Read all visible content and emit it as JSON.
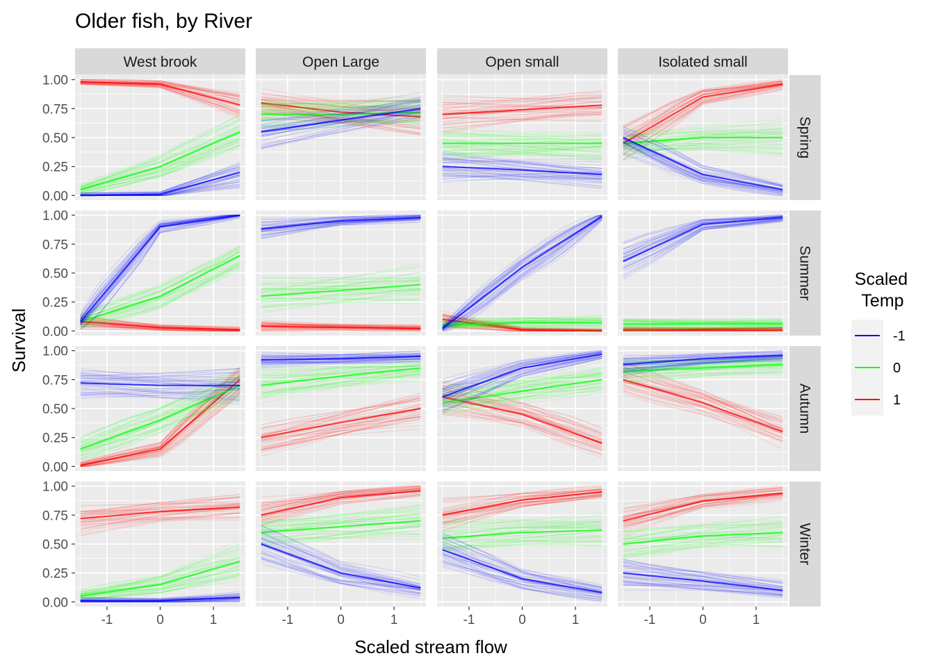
{
  "chart_data": {
    "type": "line",
    "title": "Older fish, by River",
    "xlabel": "Scaled stream flow",
    "ylabel": "Survival",
    "xlim": [
      -1.6,
      1.6
    ],
    "ylim": [
      -0.04,
      1.04
    ],
    "x_ticks": [
      -1,
      0,
      1
    ],
    "x_tick_labels": [
      "-1",
      "0",
      "1"
    ],
    "y_ticks": [
      0,
      0.25,
      0.5,
      0.75,
      1
    ],
    "y_tick_labels": [
      "0.00",
      "0.25",
      "0.50",
      "0.75",
      "1.00"
    ],
    "grid": true,
    "legend": {
      "title_lines": [
        "Scaled",
        "Temp"
      ],
      "position": "right",
      "entries": [
        {
          "label": "-1",
          "color": "#0000ff"
        },
        {
          "label": "0",
          "color": "#00ff00"
        },
        {
          "label": "1",
          "color": "#ff0000"
        }
      ]
    },
    "columns": [
      "West brook",
      "Open Large",
      "Open small",
      "Isolated small"
    ],
    "rows": [
      "Spring",
      "Summer",
      "Autumn",
      "Winter"
    ],
    "panels": [
      {
        "row": "Spring",
        "column": "West brook",
        "series": [
          {
            "temp": "-1",
            "x": [
              -1.5,
              0,
              1.5
            ],
            "y": [
              0.0,
              0.01,
              0.2
            ]
          },
          {
            "temp": "0",
            "x": [
              -1.5,
              0,
              1.5
            ],
            "y": [
              0.05,
              0.25,
              0.55
            ]
          },
          {
            "temp": "1",
            "x": [
              -1.5,
              0,
              1.5
            ],
            "y": [
              0.98,
              0.96,
              0.78
            ]
          }
        ]
      },
      {
        "row": "Spring",
        "column": "Open Large",
        "series": [
          {
            "temp": "-1",
            "x": [
              -1.5,
              0,
              1.5
            ],
            "y": [
              0.55,
              0.65,
              0.75
            ]
          },
          {
            "temp": "0",
            "x": [
              -1.5,
              0,
              1.5
            ],
            "y": [
              0.7,
              0.7,
              0.72
            ]
          },
          {
            "temp": "1",
            "x": [
              -1.5,
              0,
              1.5
            ],
            "y": [
              0.8,
              0.72,
              0.68
            ]
          }
        ]
      },
      {
        "row": "Spring",
        "column": "Open small",
        "series": [
          {
            "temp": "-1",
            "x": [
              -1.5,
              0,
              1.5
            ],
            "y": [
              0.25,
              0.22,
              0.18
            ]
          },
          {
            "temp": "0",
            "x": [
              -1.5,
              0,
              1.5
            ],
            "y": [
              0.45,
              0.45,
              0.45
            ]
          },
          {
            "temp": "1",
            "x": [
              -1.5,
              0,
              1.5
            ],
            "y": [
              0.7,
              0.74,
              0.78
            ]
          }
        ]
      },
      {
        "row": "Spring",
        "column": "Isolated small",
        "series": [
          {
            "temp": "-1",
            "x": [
              -1.5,
              0,
              1.5
            ],
            "y": [
              0.5,
              0.18,
              0.05
            ]
          },
          {
            "temp": "0",
            "x": [
              -1.5,
              0,
              1.5
            ],
            "y": [
              0.45,
              0.5,
              0.5
            ]
          },
          {
            "temp": "1",
            "x": [
              -1.5,
              0,
              1.5
            ],
            "y": [
              0.45,
              0.85,
              0.96
            ]
          }
        ]
      },
      {
        "row": "Summer",
        "column": "West brook",
        "series": [
          {
            "temp": "-1",
            "x": [
              -1.5,
              0,
              1.5
            ],
            "y": [
              0.08,
              0.9,
              1.0
            ]
          },
          {
            "temp": "0",
            "x": [
              -1.5,
              0,
              1.5
            ],
            "y": [
              0.08,
              0.3,
              0.65
            ]
          },
          {
            "temp": "1",
            "x": [
              -1.5,
              0,
              1.5
            ],
            "y": [
              0.08,
              0.03,
              0.01
            ]
          }
        ]
      },
      {
        "row": "Summer",
        "column": "Open Large",
        "series": [
          {
            "temp": "-1",
            "x": [
              -1.5,
              0,
              1.5
            ],
            "y": [
              0.88,
              0.95,
              0.98
            ]
          },
          {
            "temp": "0",
            "x": [
              -1.5,
              0,
              1.5
            ],
            "y": [
              0.3,
              0.35,
              0.4
            ]
          },
          {
            "temp": "1",
            "x": [
              -1.5,
              0,
              1.5
            ],
            "y": [
              0.04,
              0.03,
              0.02
            ]
          }
        ]
      },
      {
        "row": "Summer",
        "column": "Open small",
        "series": [
          {
            "temp": "-1",
            "x": [
              -1.5,
              0,
              1.5
            ],
            "y": [
              0.02,
              0.55,
              0.99
            ]
          },
          {
            "temp": "0",
            "x": [
              -1.5,
              0,
              1.5
            ],
            "y": [
              0.05,
              0.07,
              0.07
            ]
          },
          {
            "temp": "1",
            "x": [
              -1.5,
              0,
              1.5
            ],
            "y": [
              0.1,
              0.01,
              0.0
            ]
          }
        ]
      },
      {
        "row": "Summer",
        "column": "Isolated small",
        "series": [
          {
            "temp": "-1",
            "x": [
              -1.5,
              0,
              1.5
            ],
            "y": [
              0.6,
              0.92,
              0.98
            ]
          },
          {
            "temp": "0",
            "x": [
              -1.5,
              0,
              1.5
            ],
            "y": [
              0.06,
              0.06,
              0.06
            ]
          },
          {
            "temp": "1",
            "x": [
              -1.5,
              0,
              1.5
            ],
            "y": [
              0.01,
              0.01,
              0.01
            ]
          }
        ]
      },
      {
        "row": "Autumn",
        "column": "West brook",
        "series": [
          {
            "temp": "-1",
            "x": [
              -1.5,
              0,
              1.5
            ],
            "y": [
              0.72,
              0.7,
              0.7
            ]
          },
          {
            "temp": "0",
            "x": [
              -1.5,
              0,
              1.5
            ],
            "y": [
              0.15,
              0.4,
              0.7
            ]
          },
          {
            "temp": "1",
            "x": [
              -1.5,
              0,
              1.5
            ],
            "y": [
              0.01,
              0.15,
              0.75
            ]
          }
        ]
      },
      {
        "row": "Autumn",
        "column": "Open Large",
        "series": [
          {
            "temp": "-1",
            "x": [
              -1.5,
              0,
              1.5
            ],
            "y": [
              0.92,
              0.93,
              0.95
            ]
          },
          {
            "temp": "0",
            "x": [
              -1.5,
              0,
              1.5
            ],
            "y": [
              0.7,
              0.78,
              0.85
            ]
          },
          {
            "temp": "1",
            "x": [
              -1.5,
              0,
              1.5
            ],
            "y": [
              0.25,
              0.38,
              0.5
            ]
          }
        ]
      },
      {
        "row": "Autumn",
        "column": "Open small",
        "series": [
          {
            "temp": "-1",
            "x": [
              -1.5,
              0,
              1.5
            ],
            "y": [
              0.6,
              0.85,
              0.97
            ]
          },
          {
            "temp": "0",
            "x": [
              -1.5,
              0,
              1.5
            ],
            "y": [
              0.55,
              0.65,
              0.75
            ]
          },
          {
            "temp": "1",
            "x": [
              -1.5,
              0,
              1.5
            ],
            "y": [
              0.6,
              0.45,
              0.2
            ]
          }
        ]
      },
      {
        "row": "Autumn",
        "column": "Isolated small",
        "series": [
          {
            "temp": "-1",
            "x": [
              -1.5,
              0,
              1.5
            ],
            "y": [
              0.88,
              0.93,
              0.96
            ]
          },
          {
            "temp": "0",
            "x": [
              -1.5,
              0,
              1.5
            ],
            "y": [
              0.82,
              0.85,
              0.88
            ]
          },
          {
            "temp": "1",
            "x": [
              -1.5,
              0,
              1.5
            ],
            "y": [
              0.75,
              0.55,
              0.3
            ]
          }
        ]
      },
      {
        "row": "Winter",
        "column": "West brook",
        "series": [
          {
            "temp": "-1",
            "x": [
              -1.5,
              0,
              1.5
            ],
            "y": [
              0.01,
              0.01,
              0.04
            ]
          },
          {
            "temp": "0",
            "x": [
              -1.5,
              0,
              1.5
            ],
            "y": [
              0.05,
              0.15,
              0.35
            ]
          },
          {
            "temp": "1",
            "x": [
              -1.5,
              0,
              1.5
            ],
            "y": [
              0.72,
              0.78,
              0.82
            ]
          }
        ]
      },
      {
        "row": "Winter",
        "column": "Open Large",
        "series": [
          {
            "temp": "-1",
            "x": [
              -1.5,
              0,
              1.5
            ],
            "y": [
              0.5,
              0.25,
              0.12
            ]
          },
          {
            "temp": "0",
            "x": [
              -1.5,
              0,
              1.5
            ],
            "y": [
              0.6,
              0.65,
              0.7
            ]
          },
          {
            "temp": "1",
            "x": [
              -1.5,
              0,
              1.5
            ],
            "y": [
              0.75,
              0.9,
              0.96
            ]
          }
        ]
      },
      {
        "row": "Winter",
        "column": "Open small",
        "series": [
          {
            "temp": "-1",
            "x": [
              -1.5,
              0,
              1.5
            ],
            "y": [
              0.45,
              0.2,
              0.08
            ]
          },
          {
            "temp": "0",
            "x": [
              -1.5,
              0,
              1.5
            ],
            "y": [
              0.55,
              0.6,
              0.62
            ]
          },
          {
            "temp": "1",
            "x": [
              -1.5,
              0,
              1.5
            ],
            "y": [
              0.75,
              0.88,
              0.95
            ]
          }
        ]
      },
      {
        "row": "Winter",
        "column": "Isolated small",
        "series": [
          {
            "temp": "-1",
            "x": [
              -1.5,
              0,
              1.5
            ],
            "y": [
              0.25,
              0.18,
              0.1
            ]
          },
          {
            "temp": "0",
            "x": [
              -1.5,
              0,
              1.5
            ],
            "y": [
              0.5,
              0.57,
              0.6
            ]
          },
          {
            "temp": "1",
            "x": [
              -1.5,
              0,
              1.5
            ],
            "y": [
              0.7,
              0.87,
              0.94
            ]
          }
        ]
      }
    ]
  },
  "colors": {
    "panel_bg": "#ebebeb",
    "strip_bg": "#d9d9d9",
    "grid": "#ffffff",
    "legend_key_bg": "#f2f2f2",
    "tick": "#333333"
  }
}
